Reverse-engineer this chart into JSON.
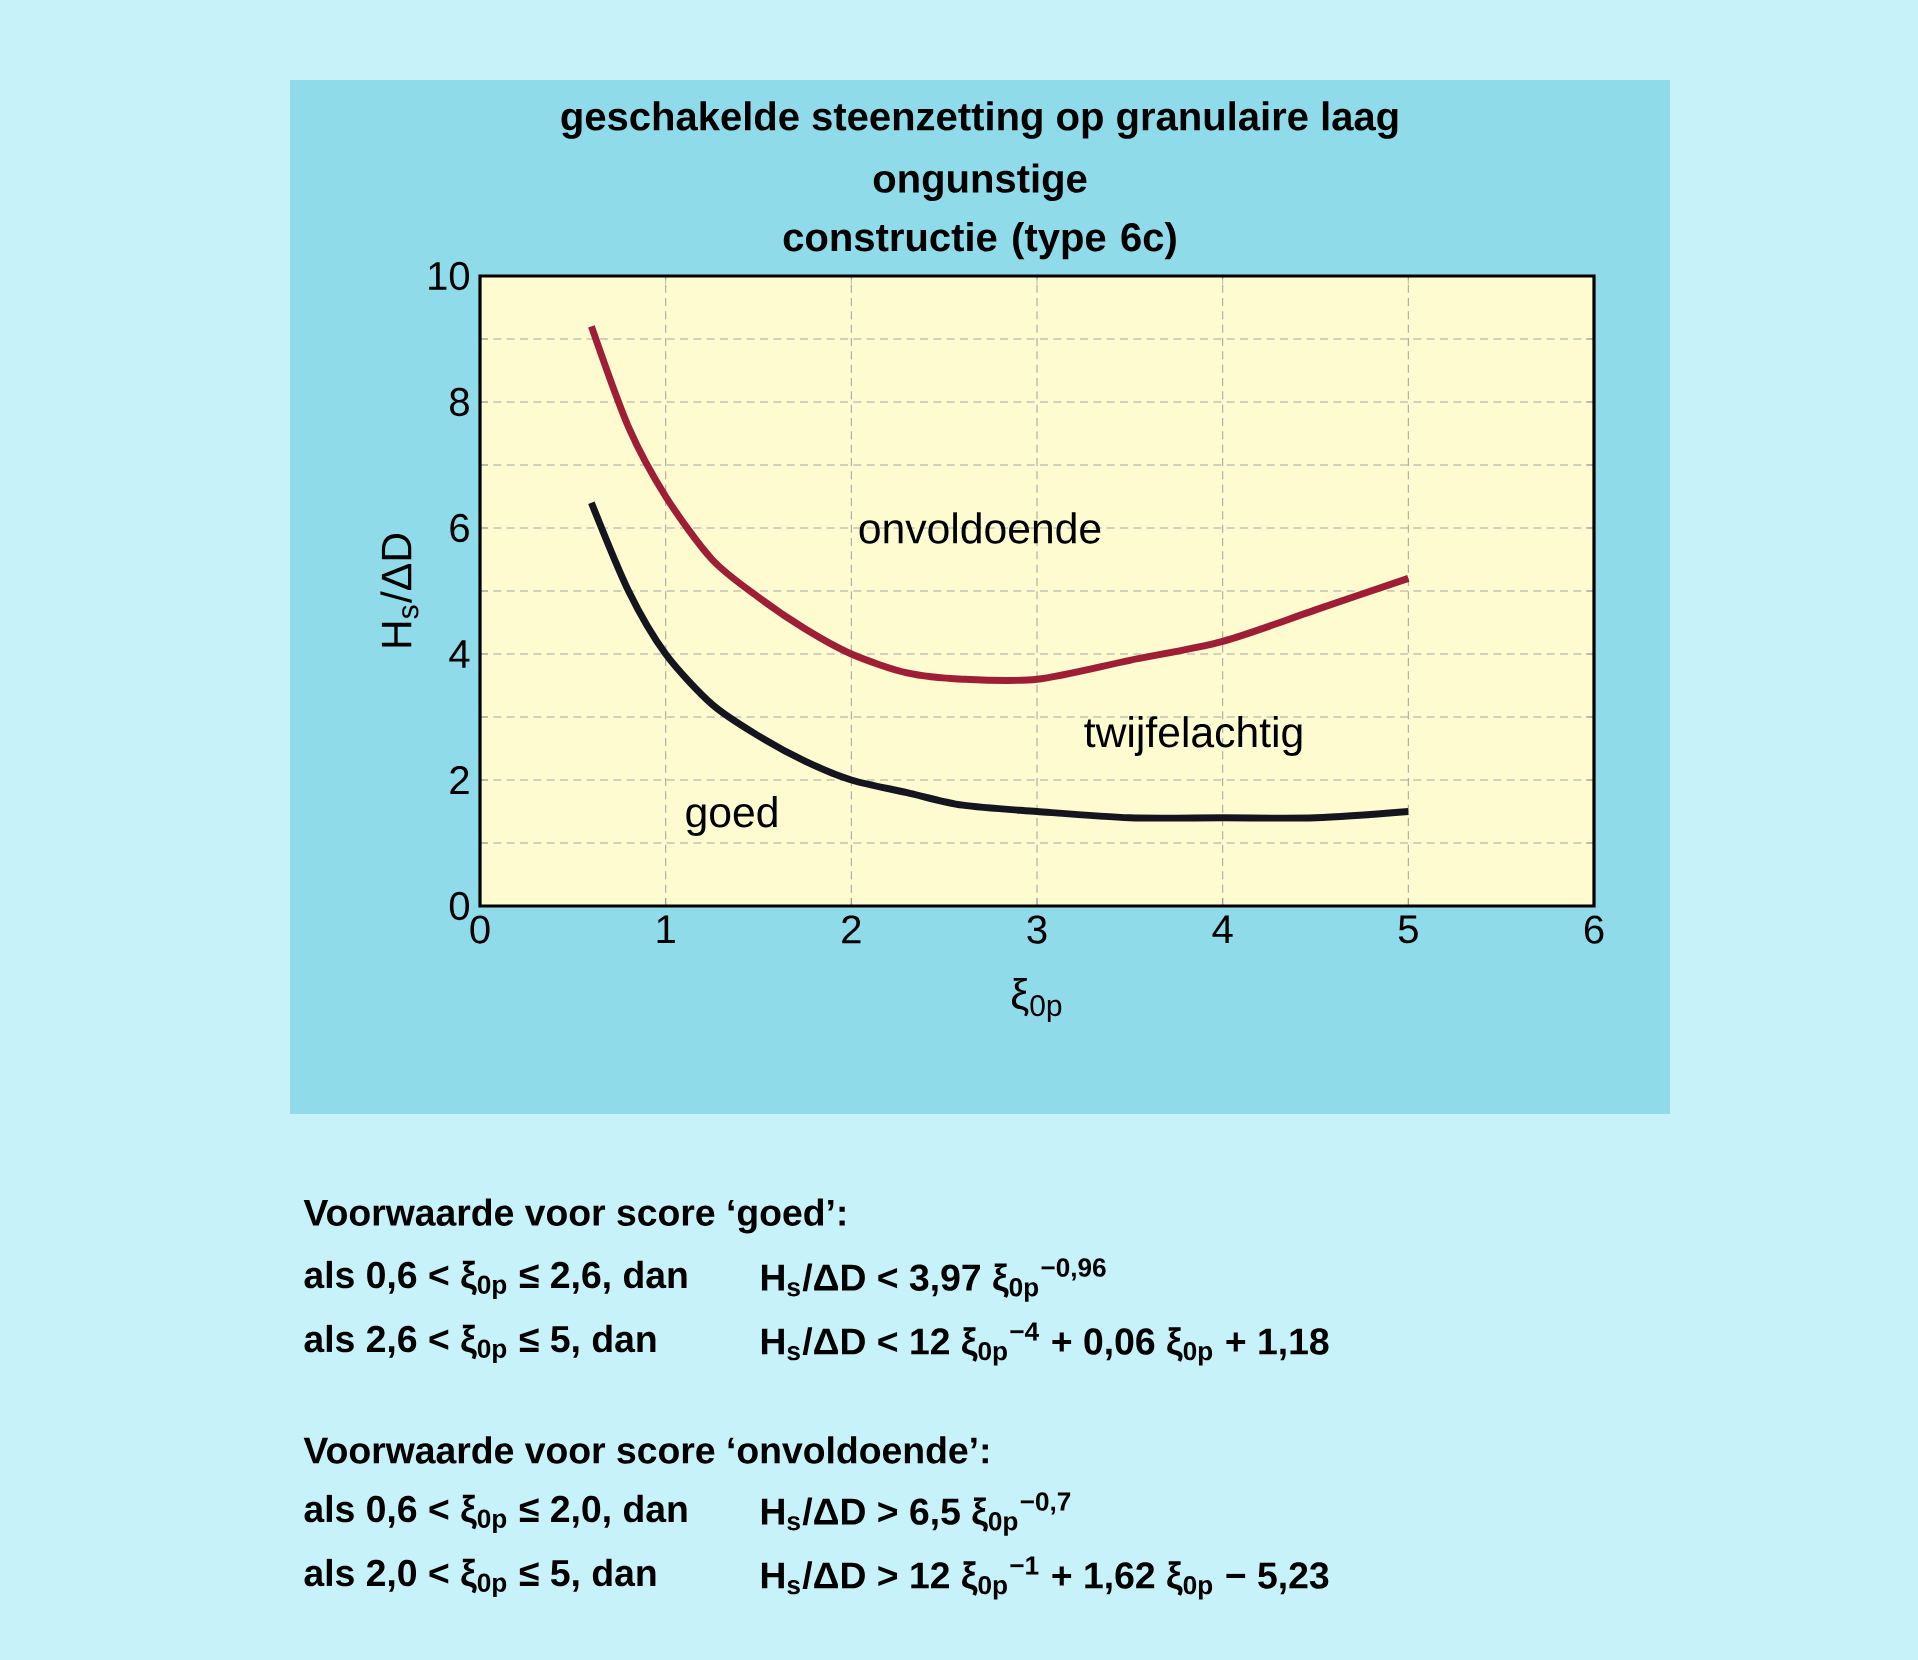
{
  "chart_data": {
    "type": "line",
    "title": "geschakelde steenzetting op granulaire laag",
    "subtitle": "ongunstige constructie (type 6c)",
    "xlabel": "ξ$_{0p}$",
    "ylabel": "H$_{s}$/ΔD",
    "xlim": [
      0,
      6
    ],
    "ylim": [
      0,
      10
    ],
    "xticks": [
      0,
      1,
      2,
      3,
      4,
      5,
      6
    ],
    "yticks": [
      0,
      {
        "value": 1,
        "label": null
      },
      2,
      {
        "value": 3,
        "label": null
      },
      4,
      {
        "value": 5,
        "label": null
      },
      6,
      {
        "value": 7,
        "label": null
      },
      8,
      {
        "value": 9,
        "label": null
      },
      10
    ],
    "grid": true,
    "line_style": "solid",
    "marker": "none",
    "series": [
      {
        "color": "#9e1f35",
        "x": [
          0.6,
          0.8,
          1,
          1.25,
          1.5,
          1.75,
          2,
          2.3,
          2.6,
          3,
          3.5,
          4,
          4.5,
          5
        ],
        "values": [
          9.2,
          7.6,
          6.5,
          5.5,
          4.9,
          4.4,
          4.0,
          3.7,
          3.6,
          3.6,
          3.9,
          4.2,
          4.7,
          5.2
        ]
      },
      {
        "color": "#15151f",
        "x": [
          0.6,
          0.8,
          1,
          1.25,
          1.5,
          1.75,
          2,
          2.3,
          2.6,
          3,
          3.5,
          4,
          4.5,
          5
        ],
        "values": [
          6.4,
          5.0,
          4.0,
          3.2,
          2.7,
          2.3,
          2.0,
          1.8,
          1.6,
          1.5,
          1.4,
          1.4,
          1.4,
          1.5
        ]
      }
    ],
    "annotations": [
      "onvoldoende",
      "twijfelachtig",
      "goed",
      "Voorwaarde voor score ‘goed’:",
      "als 0,6 < ξ$_{0p}$ ≤ 2,6, dan",
      "H$_{s}$/ΔD < 3,97 ξ$_{0p}$$^{−0,96}$",
      "als 2,6 < ξ$_{0p}$ ≤ 5, dan",
      "H$_{s}$/ΔD < 12 ξ$_{0p}$$^{−4}$ + 0,06 ξ$_{0p}$ + 1,18",
      "Voorwaarde voor score ‘onvoldoende’:",
      "als 0,6 < ξ$_{0p}$ ≤ 2,0, dan",
      "H$_{s}$/ΔD > 6,5 ξ$_{0p}$$^{−0,7}$",
      "als 2,0 < ξ$_{0p}$ ≤ 5, dan",
      "H$_{s}$/ΔD > 12 ξ$_{0p}$$^{−1}$ + 1,62 ξ$_{0p}$ − 5,23"
    ]
  }
}
